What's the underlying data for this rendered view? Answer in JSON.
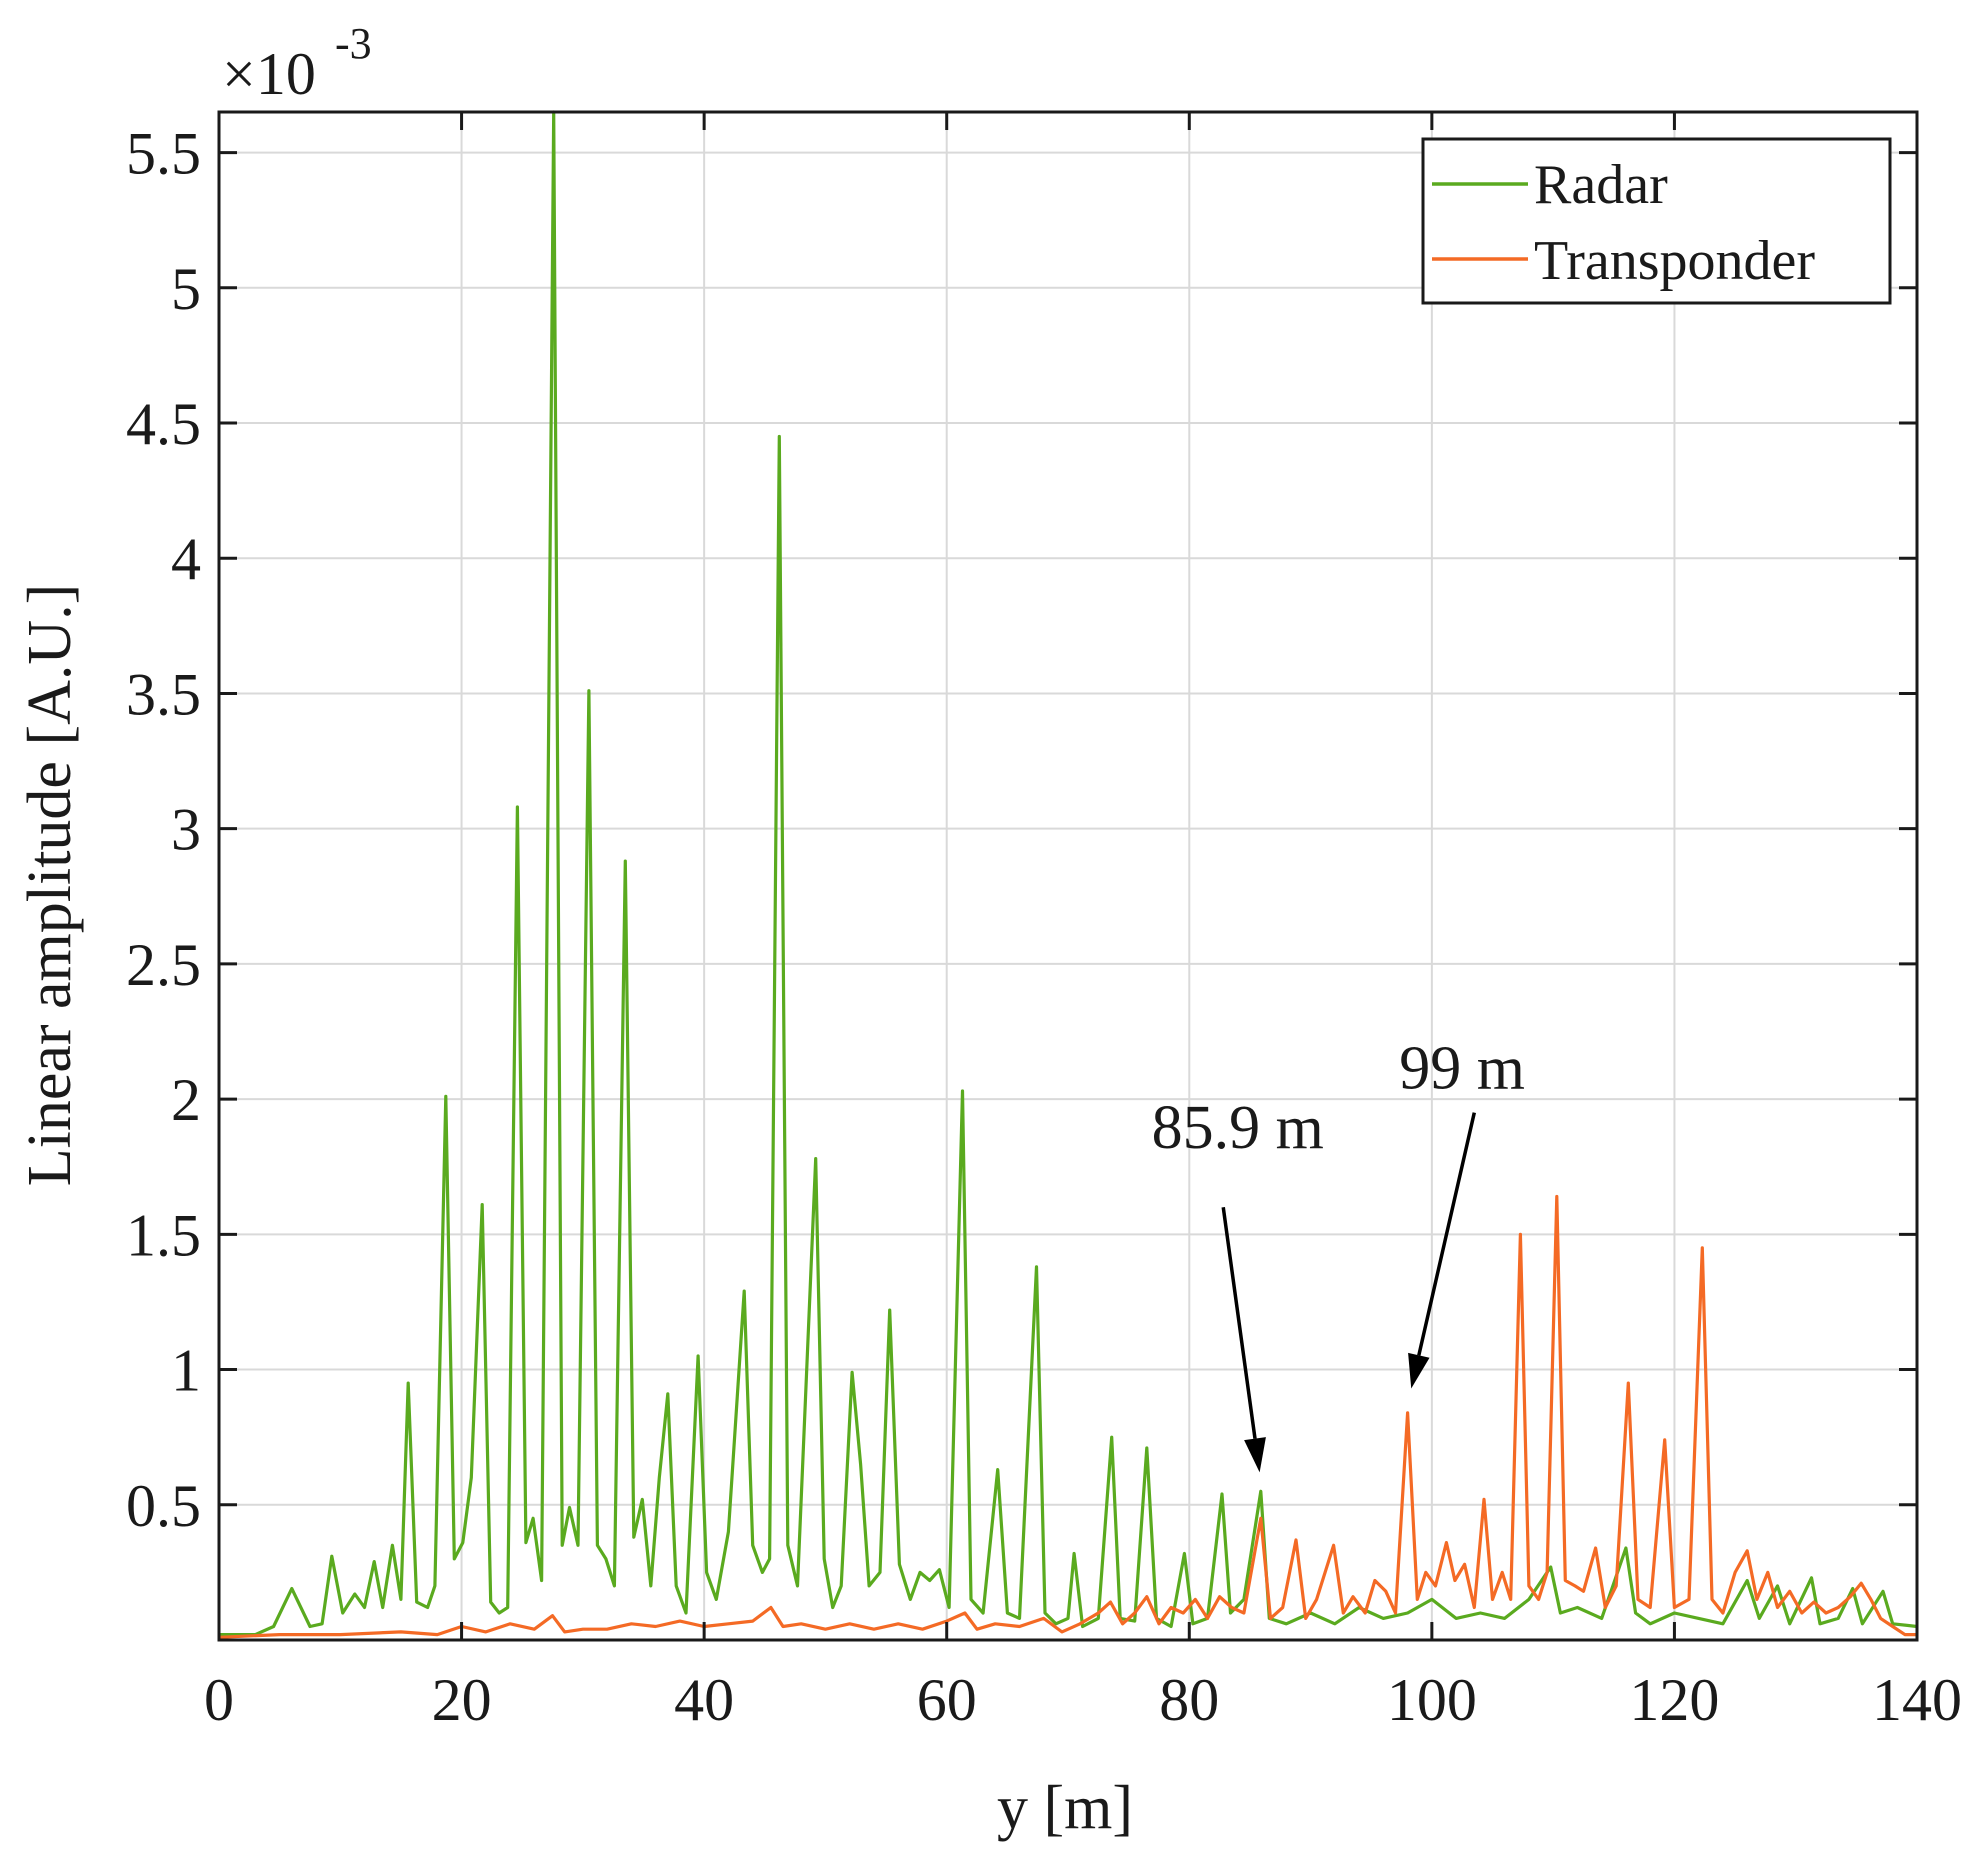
{
  "chart_data": {
    "type": "line",
    "title": "",
    "xlabel": "y [m]",
    "ylabel": "Linear amplitude [A.U.]",
    "exponent_label": "×10",
    "exponent_power": "-3",
    "xlim": [
      0,
      140
    ],
    "ylim": [
      0,
      5.65
    ],
    "x_ticks": [
      0,
      20,
      40,
      60,
      80,
      100,
      120,
      140
    ],
    "x_tick_labels": [
      "0",
      "20",
      "40",
      "60",
      "80",
      "100",
      "120",
      "140"
    ],
    "y_ticks": [
      0.5,
      1,
      1.5,
      2,
      2.5,
      3,
      3.5,
      4,
      4.5,
      5,
      5.5
    ],
    "y_tick_labels": [
      "0.5",
      "1",
      "1.5",
      "2",
      "2.5",
      "3",
      "3.5",
      "4",
      "4.5",
      "5",
      "5.5"
    ],
    "grid": true,
    "legend_position": "top-right",
    "series": [
      {
        "name": "Radar",
        "color": "#5aaa1f",
        "points": [
          [
            0,
            0.02
          ],
          [
            3,
            0.02
          ],
          [
            4.5,
            0.05
          ],
          [
            6,
            0.19
          ],
          [
            7.5,
            0.05
          ],
          [
            8.5,
            0.06
          ],
          [
            9.3,
            0.31
          ],
          [
            10.2,
            0.1
          ],
          [
            11.2,
            0.17
          ],
          [
            12,
            0.12
          ],
          [
            12.8,
            0.29
          ],
          [
            13.5,
            0.12
          ],
          [
            14.3,
            0.35
          ],
          [
            15,
            0.15
          ],
          [
            15.6,
            0.95
          ],
          [
            16.3,
            0.14
          ],
          [
            17.2,
            0.12
          ],
          [
            17.8,
            0.2
          ],
          [
            18.7,
            2.01
          ],
          [
            19.4,
            0.3
          ],
          [
            20.1,
            0.36
          ],
          [
            20.8,
            0.6
          ],
          [
            21.7,
            1.61
          ],
          [
            22.4,
            0.14
          ],
          [
            23.1,
            0.1
          ],
          [
            23.8,
            0.12
          ],
          [
            24.6,
            3.08
          ],
          [
            25.3,
            0.36
          ],
          [
            25.9,
            0.45
          ],
          [
            26.6,
            0.22
          ],
          [
            27.6,
            5.65
          ],
          [
            28.3,
            0.35
          ],
          [
            28.9,
            0.49
          ],
          [
            29.6,
            0.35
          ],
          [
            30.5,
            3.51
          ],
          [
            31.2,
            0.35
          ],
          [
            31.9,
            0.3
          ],
          [
            32.6,
            0.2
          ],
          [
            33.5,
            2.88
          ],
          [
            34.2,
            0.38
          ],
          [
            34.9,
            0.52
          ],
          [
            35.6,
            0.2
          ],
          [
            36.3,
            0.6
          ],
          [
            37,
            0.91
          ],
          [
            37.7,
            0.2
          ],
          [
            38.5,
            0.1
          ],
          [
            39.5,
            1.05
          ],
          [
            40.2,
            0.25
          ],
          [
            41,
            0.15
          ],
          [
            42,
            0.4
          ],
          [
            43.3,
            1.29
          ],
          [
            44,
            0.35
          ],
          [
            44.8,
            0.25
          ],
          [
            45.4,
            0.3
          ],
          [
            46.2,
            4.45
          ],
          [
            46.9,
            0.35
          ],
          [
            47.7,
            0.2
          ],
          [
            49.2,
            1.78
          ],
          [
            49.9,
            0.3
          ],
          [
            50.6,
            0.12
          ],
          [
            51.3,
            0.2
          ],
          [
            52.2,
            0.99
          ],
          [
            52.9,
            0.65
          ],
          [
            53.6,
            0.2
          ],
          [
            54.5,
            0.25
          ],
          [
            55.3,
            1.22
          ],
          [
            56.1,
            0.28
          ],
          [
            57,
            0.15
          ],
          [
            57.8,
            0.25
          ],
          [
            58.6,
            0.22
          ],
          [
            59.4,
            0.26
          ],
          [
            60.2,
            0.12
          ],
          [
            61.3,
            2.03
          ],
          [
            62,
            0.15
          ],
          [
            63,
            0.1
          ],
          [
            64.2,
            0.63
          ],
          [
            65,
            0.1
          ],
          [
            66,
            0.08
          ],
          [
            67.4,
            1.38
          ],
          [
            68.1,
            0.1
          ],
          [
            69,
            0.06
          ],
          [
            70,
            0.08
          ],
          [
            70.5,
            0.32
          ],
          [
            71.2,
            0.05
          ],
          [
            72.5,
            0.08
          ],
          [
            73.6,
            0.75
          ],
          [
            74.3,
            0.08
          ],
          [
            75.5,
            0.07
          ],
          [
            76.5,
            0.71
          ],
          [
            77.3,
            0.08
          ],
          [
            78.5,
            0.05
          ],
          [
            79.6,
            0.32
          ],
          [
            80.3,
            0.06
          ],
          [
            81.5,
            0.08
          ],
          [
            82.7,
            0.54
          ],
          [
            83.4,
            0.1
          ],
          [
            84.5,
            0.15
          ],
          [
            85.9,
            0.55
          ],
          [
            86.6,
            0.08
          ],
          [
            88,
            0.06
          ],
          [
            90,
            0.1
          ],
          [
            92,
            0.06
          ],
          [
            94,
            0.12
          ],
          [
            96,
            0.08
          ],
          [
            98,
            0.1
          ],
          [
            100,
            0.15
          ],
          [
            102,
            0.08
          ],
          [
            104,
            0.1
          ],
          [
            106,
            0.08
          ],
          [
            108,
            0.15
          ],
          [
            109.8,
            0.27
          ],
          [
            110.6,
            0.1
          ],
          [
            112,
            0.12
          ],
          [
            114,
            0.08
          ],
          [
            116,
            0.34
          ],
          [
            116.8,
            0.1
          ],
          [
            118,
            0.06
          ],
          [
            120,
            0.1
          ],
          [
            122,
            0.08
          ],
          [
            124,
            0.06
          ],
          [
            126,
            0.22
          ],
          [
            127,
            0.08
          ],
          [
            128.5,
            0.2
          ],
          [
            129.5,
            0.06
          ],
          [
            131.3,
            0.23
          ],
          [
            132,
            0.06
          ],
          [
            133.5,
            0.08
          ],
          [
            134.7,
            0.19
          ],
          [
            135.5,
            0.06
          ],
          [
            137.2,
            0.18
          ],
          [
            138,
            0.06
          ],
          [
            140,
            0.05
          ]
        ]
      },
      {
        "name": "Transponder",
        "color": "#f46a25",
        "points": [
          [
            0,
            0.01
          ],
          [
            5,
            0.02
          ],
          [
            10,
            0.02
          ],
          [
            15,
            0.03
          ],
          [
            18,
            0.02
          ],
          [
            20,
            0.05
          ],
          [
            22,
            0.03
          ],
          [
            24,
            0.06
          ],
          [
            26,
            0.04
          ],
          [
            27.5,
            0.09
          ],
          [
            28.5,
            0.03
          ],
          [
            30,
            0.04
          ],
          [
            32,
            0.04
          ],
          [
            34,
            0.06
          ],
          [
            36,
            0.05
          ],
          [
            38,
            0.07
          ],
          [
            40,
            0.05
          ],
          [
            42,
            0.06
          ],
          [
            44,
            0.07
          ],
          [
            45.5,
            0.12
          ],
          [
            46.5,
            0.05
          ],
          [
            48,
            0.06
          ],
          [
            50,
            0.04
          ],
          [
            52,
            0.06
          ],
          [
            54,
            0.04
          ],
          [
            56,
            0.06
          ],
          [
            58,
            0.04
          ],
          [
            60,
            0.07
          ],
          [
            61.5,
            0.1
          ],
          [
            62.5,
            0.04
          ],
          [
            64,
            0.06
          ],
          [
            66,
            0.05
          ],
          [
            68,
            0.08
          ],
          [
            69.5,
            0.03
          ],
          [
            71,
            0.06
          ],
          [
            72.5,
            0.1
          ],
          [
            73.5,
            0.14
          ],
          [
            74.5,
            0.06
          ],
          [
            75.5,
            0.1
          ],
          [
            76.5,
            0.16
          ],
          [
            77.5,
            0.06
          ],
          [
            78.5,
            0.12
          ],
          [
            79.5,
            0.1
          ],
          [
            80.5,
            0.15
          ],
          [
            81.5,
            0.08
          ],
          [
            82.5,
            0.16
          ],
          [
            83.5,
            0.12
          ],
          [
            84.5,
            0.1
          ],
          [
            85.9,
            0.45
          ],
          [
            86.7,
            0.08
          ],
          [
            87.7,
            0.12
          ],
          [
            88.8,
            0.37
          ],
          [
            89.6,
            0.08
          ],
          [
            90.5,
            0.15
          ],
          [
            91.9,
            0.35
          ],
          [
            92.7,
            0.1
          ],
          [
            93.5,
            0.16
          ],
          [
            94.5,
            0.1
          ],
          [
            95.3,
            0.22
          ],
          [
            96.2,
            0.18
          ],
          [
            97,
            0.1
          ],
          [
            98,
            0.84
          ],
          [
            98.8,
            0.15
          ],
          [
            99.5,
            0.25
          ],
          [
            100.3,
            0.2
          ],
          [
            101.2,
            0.36
          ],
          [
            101.9,
            0.22
          ],
          [
            102.7,
            0.28
          ],
          [
            103.5,
            0.12
          ],
          [
            104.3,
            0.52
          ],
          [
            105,
            0.15
          ],
          [
            105.8,
            0.25
          ],
          [
            106.5,
            0.15
          ],
          [
            107.3,
            1.5
          ],
          [
            108,
            0.2
          ],
          [
            108.8,
            0.15
          ],
          [
            109.5,
            0.25
          ],
          [
            110.3,
            1.64
          ],
          [
            111,
            0.22
          ],
          [
            111.8,
            0.2
          ],
          [
            112.5,
            0.18
          ],
          [
            113.5,
            0.34
          ],
          [
            114.3,
            0.12
          ],
          [
            115.2,
            0.2
          ],
          [
            116.2,
            0.95
          ],
          [
            117,
            0.15
          ],
          [
            118,
            0.12
          ],
          [
            119.2,
            0.74
          ],
          [
            120,
            0.12
          ],
          [
            121.2,
            0.15
          ],
          [
            122.3,
            1.45
          ],
          [
            123.1,
            0.15
          ],
          [
            124,
            0.1
          ],
          [
            125,
            0.25
          ],
          [
            126,
            0.33
          ],
          [
            126.8,
            0.15
          ],
          [
            127.7,
            0.25
          ],
          [
            128.5,
            0.12
          ],
          [
            129.5,
            0.18
          ],
          [
            130.5,
            0.1
          ],
          [
            131.5,
            0.14
          ],
          [
            132.5,
            0.1
          ],
          [
            133.5,
            0.12
          ],
          [
            134.5,
            0.16
          ],
          [
            135.4,
            0.21
          ],
          [
            136.2,
            0.15
          ],
          [
            137,
            0.08
          ],
          [
            138,
            0.05
          ],
          [
            139,
            0.02
          ],
          [
            140,
            0.02
          ]
        ]
      }
    ],
    "annotations": [
      {
        "text": "85.9 m",
        "text_x": 84,
        "text_y": 1.82,
        "tail": [
          82.8,
          1.6
        ],
        "head": [
          85.8,
          0.62
        ]
      },
      {
        "text": "99 m",
        "text_x": 102.5,
        "text_y": 2.04,
        "tail": [
          103.5,
          1.95
        ],
        "head": [
          98.3,
          0.93
        ]
      }
    ]
  }
}
